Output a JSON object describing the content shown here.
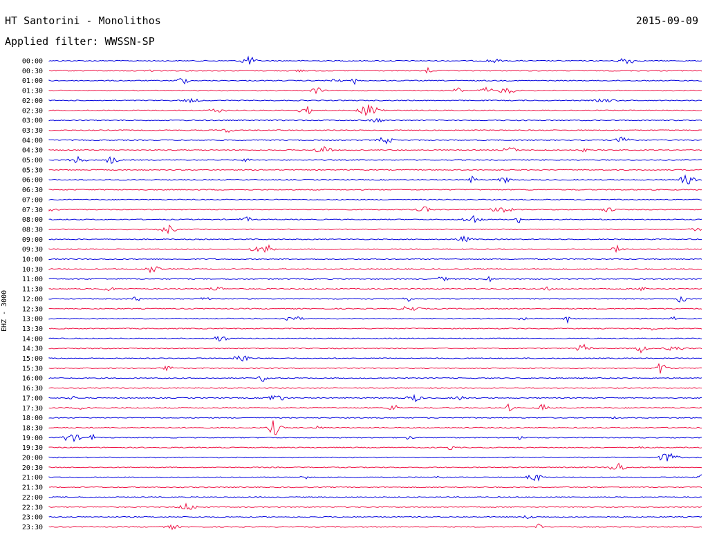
{
  "header": {
    "station": "HT Santorini - Monolithos",
    "filter": "Applied filter: WWSSN-SP",
    "date": "2015-09-09"
  },
  "chart_data": {
    "type": "line",
    "channel_label": "EHZ - 3000",
    "rows": [
      "00:00",
      "00:30",
      "01:00",
      "01:30",
      "02:00",
      "02:30",
      "03:00",
      "03:30",
      "04:00",
      "04:30",
      "05:00",
      "05:30",
      "06:00",
      "06:30",
      "07:00",
      "07:30",
      "08:00",
      "08:30",
      "09:00",
      "09:30",
      "10:00",
      "10:30",
      "11:00",
      "11:30",
      "12:00",
      "12:30",
      "13:00",
      "13:30",
      "14:00",
      "14:30",
      "15:00",
      "15:30",
      "16:00",
      "16:30",
      "17:00",
      "17:30",
      "18:00",
      "18:30",
      "19:00",
      "19:30",
      "20:00",
      "20:30",
      "21:00",
      "21:30",
      "22:00",
      "22:30",
      "23:00",
      "23:30"
    ],
    "colors": [
      "#0000dd",
      "#ee1144"
    ],
    "grid": false
  }
}
